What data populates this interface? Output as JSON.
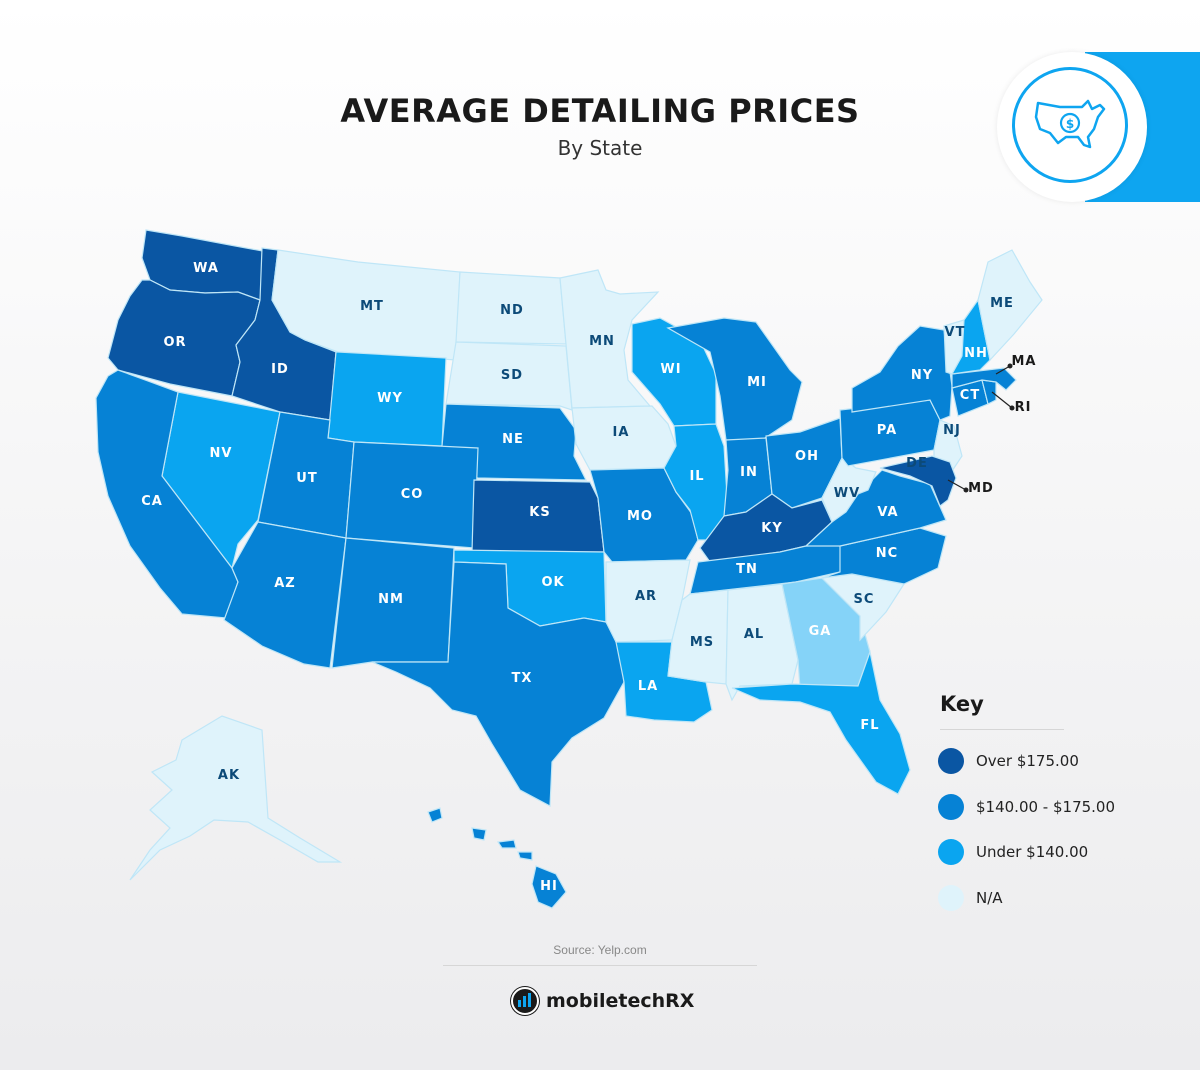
{
  "title": "AVERAGE DETAILING PRICES",
  "subtitle": "By State",
  "badge": {
    "icon": "usa-dollar-icon",
    "color": "#0ea5f0"
  },
  "legend": {
    "title": "Key",
    "items": [
      {
        "label": "Over $175.00",
        "color": "#0a56a3"
      },
      {
        "label": "$140.00 - $175.00",
        "color": "#0682d5"
      },
      {
        "label": "Under $140.00",
        "color": "#0aa5f0"
      },
      {
        "label": "N/A",
        "color": "#dff3fb"
      }
    ]
  },
  "tier_colors": {
    "over": "#0a56a3",
    "mid": "#0682d5",
    "under": "#0aa5f0",
    "light": "#85d3f8",
    "na": "#dff3fb"
  },
  "states": [
    {
      "code": "WA",
      "tier": "over"
    },
    {
      "code": "OR",
      "tier": "over"
    },
    {
      "code": "ID",
      "tier": "over"
    },
    {
      "code": "KS",
      "tier": "over"
    },
    {
      "code": "KY",
      "tier": "over"
    },
    {
      "code": "MD",
      "tier": "over"
    },
    {
      "code": "CA",
      "tier": "mid"
    },
    {
      "code": "UT",
      "tier": "mid"
    },
    {
      "code": "AZ",
      "tier": "mid"
    },
    {
      "code": "CO",
      "tier": "mid"
    },
    {
      "code": "NM",
      "tier": "mid"
    },
    {
      "code": "TX",
      "tier": "mid"
    },
    {
      "code": "NE",
      "tier": "mid"
    },
    {
      "code": "MO",
      "tier": "mid"
    },
    {
      "code": "MI",
      "tier": "mid"
    },
    {
      "code": "IN",
      "tier": "mid"
    },
    {
      "code": "OH",
      "tier": "mid"
    },
    {
      "code": "TN",
      "tier": "mid"
    },
    {
      "code": "VA",
      "tier": "mid"
    },
    {
      "code": "NC",
      "tier": "mid"
    },
    {
      "code": "PA",
      "tier": "mid"
    },
    {
      "code": "NY",
      "tier": "mid"
    },
    {
      "code": "CT",
      "tier": "mid"
    },
    {
      "code": "MA",
      "tier": "mid"
    },
    {
      "code": "RI",
      "tier": "mid"
    },
    {
      "code": "HI",
      "tier": "mid"
    },
    {
      "code": "NV",
      "tier": "under"
    },
    {
      "code": "WY",
      "tier": "under"
    },
    {
      "code": "OK",
      "tier": "under"
    },
    {
      "code": "WI",
      "tier": "under"
    },
    {
      "code": "IL",
      "tier": "under"
    },
    {
      "code": "LA",
      "tier": "under"
    },
    {
      "code": "FL",
      "tier": "under"
    },
    {
      "code": "NH",
      "tier": "under"
    },
    {
      "code": "GA",
      "tier": "light"
    },
    {
      "code": "MT",
      "tier": "na"
    },
    {
      "code": "ND",
      "tier": "na"
    },
    {
      "code": "SD",
      "tier": "na"
    },
    {
      "code": "MN",
      "tier": "na"
    },
    {
      "code": "IA",
      "tier": "na"
    },
    {
      "code": "AR",
      "tier": "na"
    },
    {
      "code": "MS",
      "tier": "na"
    },
    {
      "code": "AL",
      "tier": "na"
    },
    {
      "code": "SC",
      "tier": "na"
    },
    {
      "code": "WV",
      "tier": "na"
    },
    {
      "code": "NJ",
      "tier": "na"
    },
    {
      "code": "DE",
      "tier": "na"
    },
    {
      "code": "VT",
      "tier": "na"
    },
    {
      "code": "ME",
      "tier": "na"
    },
    {
      "code": "AK",
      "tier": "na"
    }
  ],
  "source": "Source: Yelp.com",
  "logo": {
    "text_a": "mobile",
    "text_b": "tech",
    "text_c": "RX"
  }
}
